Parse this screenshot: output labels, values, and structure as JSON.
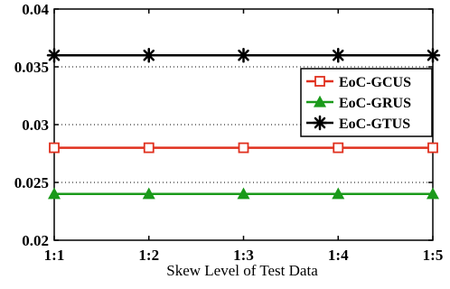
{
  "chart_data": {
    "type": "line",
    "title": "",
    "xlabel": "Skew Level of Test Data",
    "ylabel": "",
    "categories": [
      "1:1",
      "1:2",
      "1:3",
      "1:4",
      "1:5"
    ],
    "ylim": [
      0.02,
      0.04
    ],
    "yticks": [
      "0.02",
      "0.025",
      "0.03",
      "0.035",
      "0.04"
    ],
    "grid": "horizontal dotted",
    "legend_position": "right",
    "series": [
      {
        "name": "EoC-GCUS",
        "values": [
          0.028,
          0.028,
          0.028,
          0.028,
          0.028
        ],
        "color": "#e0301e",
        "marker": "square"
      },
      {
        "name": "EoC-GRUS",
        "values": [
          0.024,
          0.024,
          0.024,
          0.024,
          0.024
        ],
        "color": "#1a9a1a",
        "marker": "triangle"
      },
      {
        "name": "EoC-GTUS",
        "values": [
          0.036,
          0.036,
          0.036,
          0.036,
          0.036
        ],
        "color": "#000000",
        "marker": "asterisk"
      }
    ]
  }
}
